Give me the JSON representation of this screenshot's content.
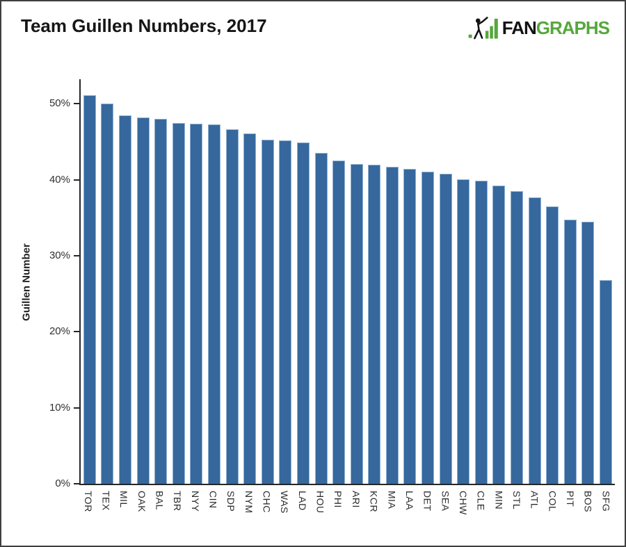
{
  "header": {
    "title": "Team Guillen Numbers, 2017"
  },
  "logo": {
    "fan": "FAN",
    "graphs": "GRAPHS",
    "green": "#55A73C",
    "black": "#121212",
    "icon": "fangraphs-batter-icon"
  },
  "chart_data": {
    "type": "bar",
    "title": "Team Guillen Numbers, 2017",
    "xlabel": "",
    "ylabel": "Guillen Number",
    "categories": [
      "TOR",
      "TEX",
      "MIL",
      "OAK",
      "BAL",
      "TBR",
      "NYY",
      "CIN",
      "SDP",
      "NYM",
      "CHC",
      "WAS",
      "LAD",
      "HOU",
      "PHI",
      "ARI",
      "KCR",
      "MIA",
      "LAA",
      "DET",
      "SEA",
      "CHW",
      "CLE",
      "MIN",
      "STL",
      "ATL",
      "COL",
      "PIT",
      "BOS",
      "SFG"
    ],
    "values": [
      51.0,
      49.9,
      48.4,
      48.1,
      47.9,
      47.4,
      47.3,
      47.2,
      46.5,
      46.0,
      45.2,
      45.1,
      44.8,
      43.4,
      42.4,
      42.0,
      41.9,
      41.6,
      41.3,
      41.0,
      40.7,
      40.0,
      39.8,
      39.1,
      38.4,
      37.6,
      36.4,
      34.7,
      34.4,
      26.7
    ],
    "value_unit": "%",
    "yticks": [
      "0%",
      "10%",
      "20%",
      "30%",
      "40%",
      "50%"
    ],
    "ytick_values": [
      0,
      10,
      20,
      30,
      40,
      50
    ],
    "ylim": [
      0,
      53.4
    ],
    "grid": false,
    "legend": false,
    "bar_color": "#36689D",
    "bar_border_color": "#8FB2D4",
    "axis_color": "#262626",
    "background": "#FFFFFF"
  }
}
